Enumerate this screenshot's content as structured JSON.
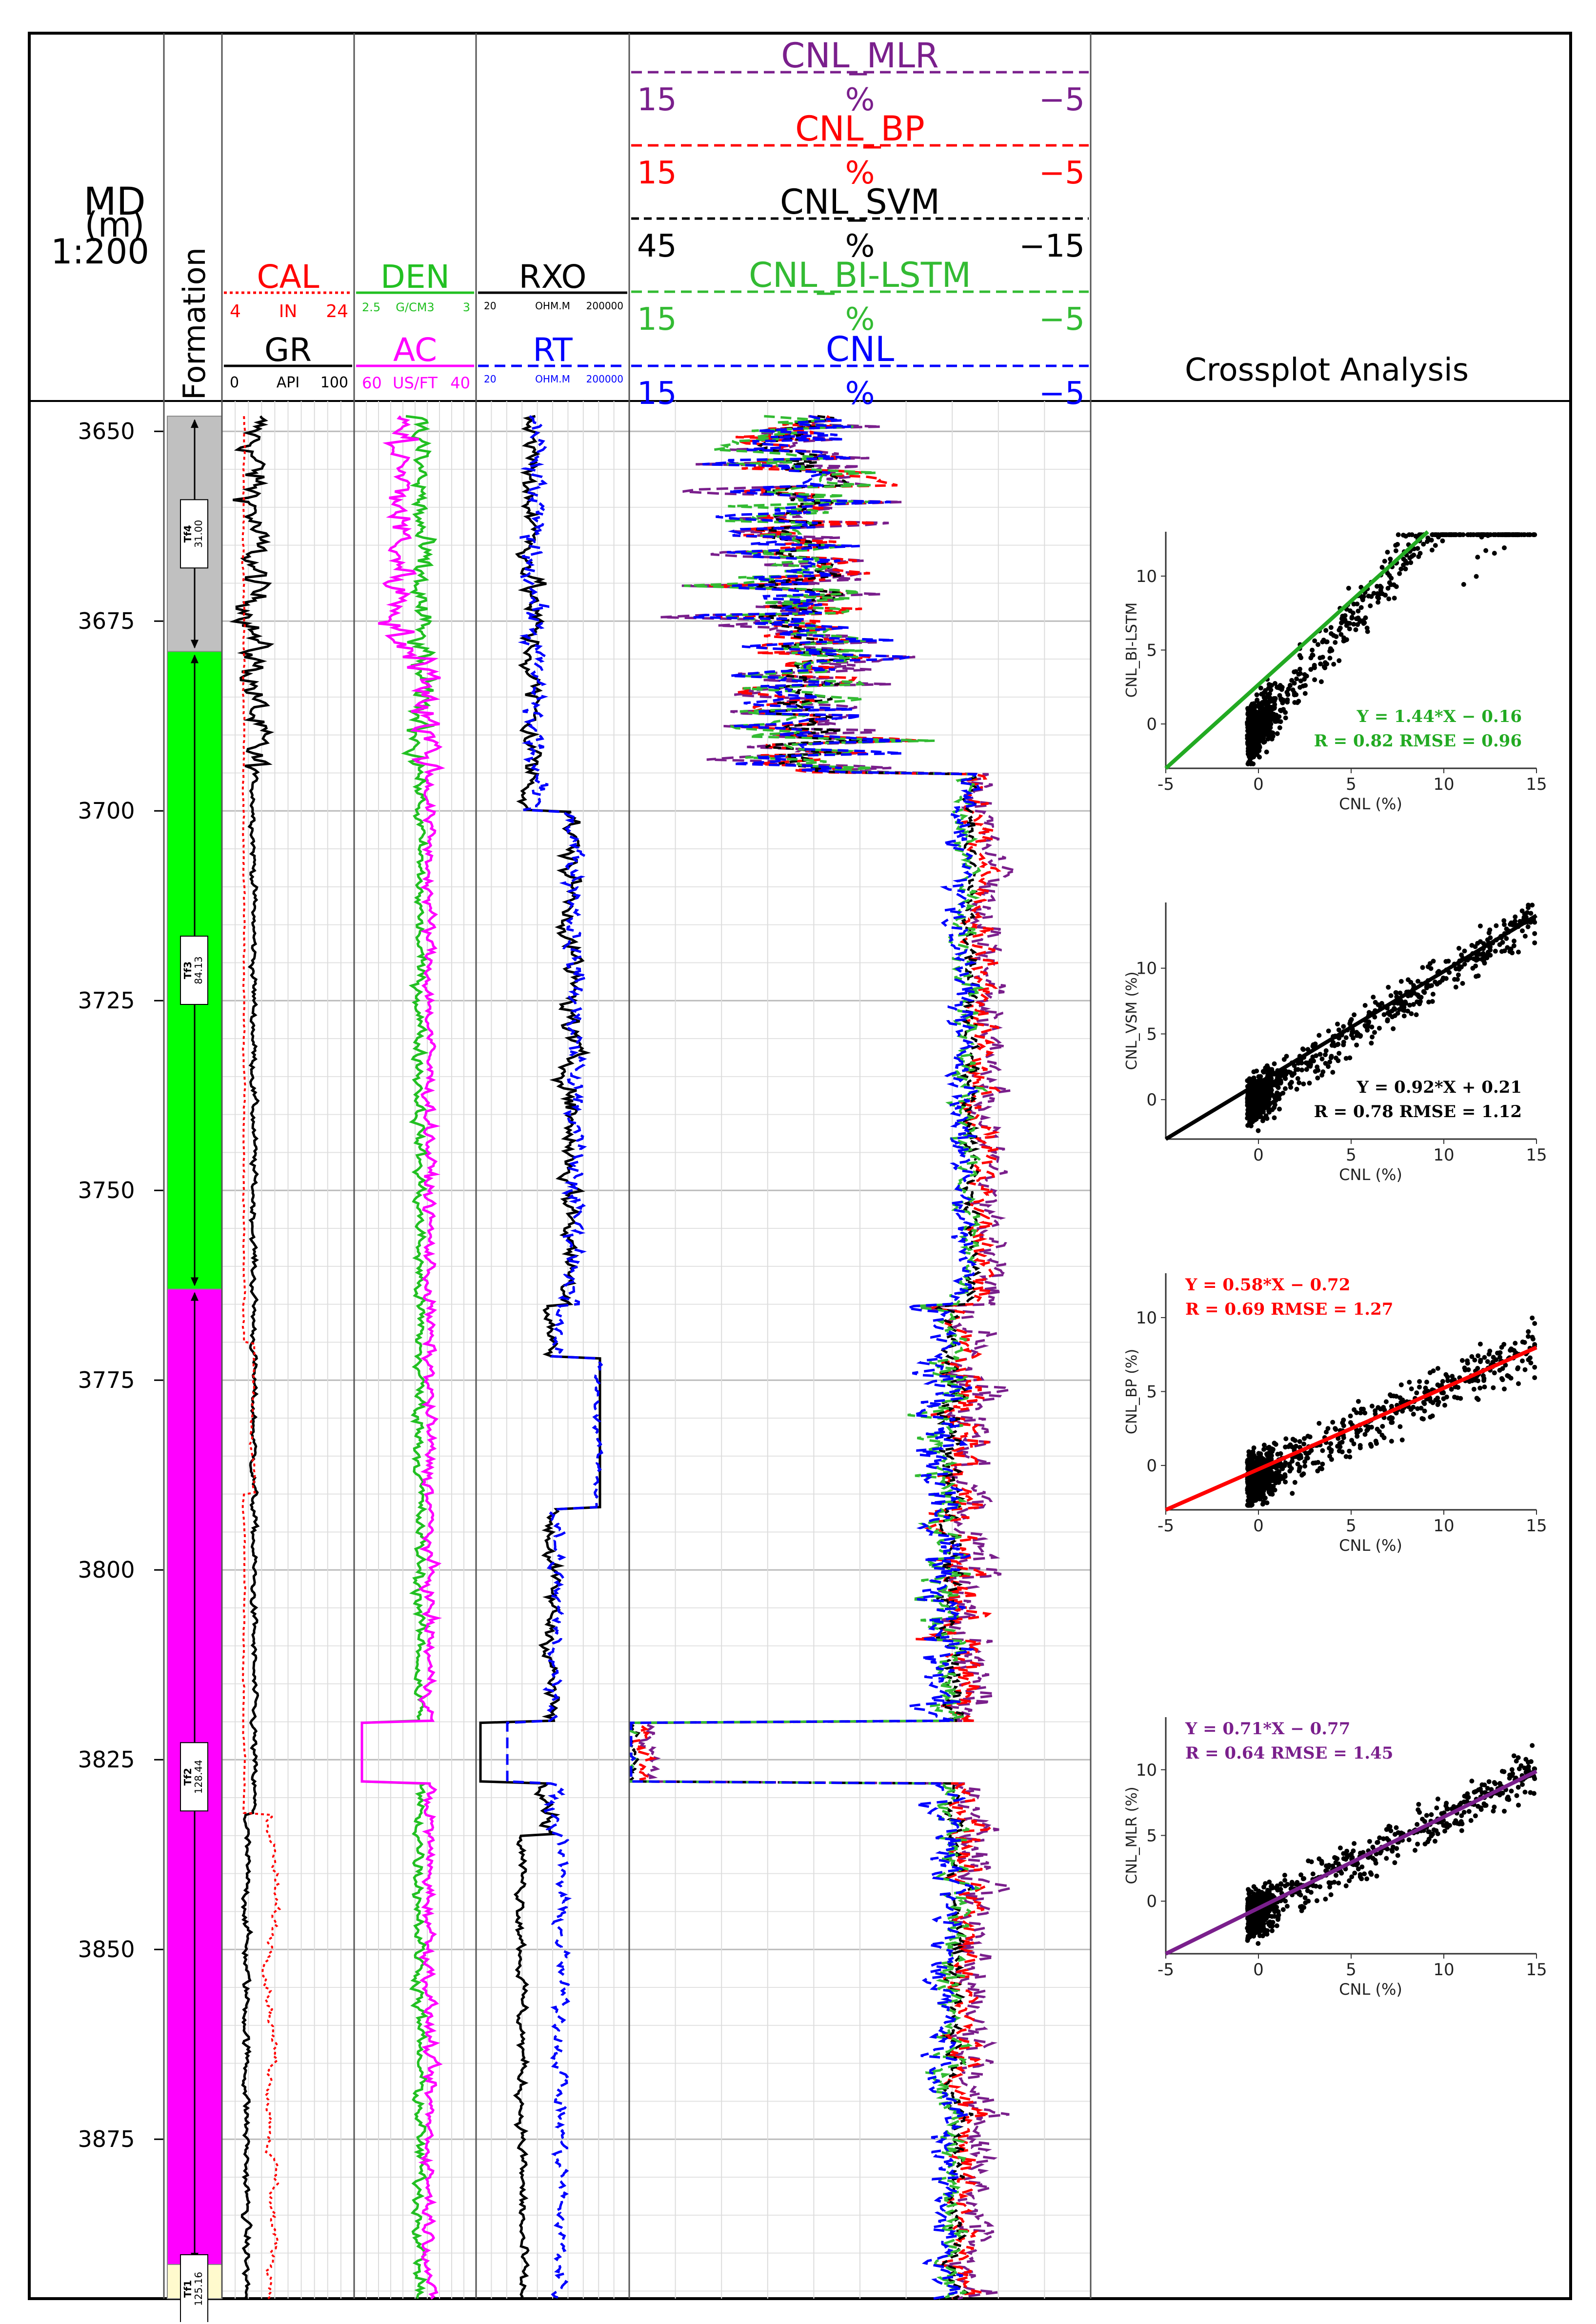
{
  "header": {
    "depth": {
      "line1": "MD",
      "line2": "(m)",
      "line3": "1:200"
    },
    "formation_label": "Formation",
    "crossplot_title": "Crossplot Analysis"
  },
  "tracks": {
    "gr_track": {
      "curves": [
        {
          "name": "CAL",
          "unit": "IN",
          "left": "4",
          "right": "24",
          "color": "#ff0000",
          "dash": "dotted"
        },
        {
          "name": "GR",
          "unit": "API",
          "left": "0",
          "right": "100",
          "color": "#000000",
          "dash": "solid"
        }
      ]
    },
    "den_track": {
      "curves": [
        {
          "name": "DEN",
          "unit": "G/CM3",
          "left": "2.5",
          "right": "3",
          "color": "#22c022",
          "dash": "solid"
        },
        {
          "name": "AC",
          "unit": "US/FT",
          "left": "60",
          "right": "40",
          "color": "#ff00ff",
          "dash": "solid"
        }
      ]
    },
    "res_track": {
      "curves": [
        {
          "name": "RXO",
          "unit": "OHM.M",
          "left": "20",
          "right": "200000",
          "color": "#000000",
          "dash": "solid"
        },
        {
          "name": "RT",
          "unit": "OHM.M",
          "left": "20",
          "right": "200000",
          "color": "#0000ff",
          "dash": "dashed"
        }
      ]
    },
    "cnl_track": {
      "curves": [
        {
          "name": "CNL_MLR",
          "unit": "%",
          "left": "15",
          "right": "−5",
          "color": "#7a1f8c"
        },
        {
          "name": "CNL_BP",
          "unit": "%",
          "left": "15",
          "right": "−5",
          "color": "#ff0000"
        },
        {
          "name": "CNL_SVM",
          "unit": "%",
          "left": "45",
          "right": "−15",
          "color": "#000000"
        },
        {
          "name": "CNL_BI-LSTM",
          "unit": "%",
          "left": "15",
          "right": "−5",
          "color": "#33bb33"
        },
        {
          "name": "CNL",
          "unit": "%",
          "left": "15",
          "right": "−5",
          "color": "#0000ff"
        }
      ]
    }
  },
  "depth_axis": {
    "top": 3646,
    "bottom": 3896,
    "ticks": [
      "3650",
      "3675",
      "3700",
      "3725",
      "3750",
      "3775",
      "3800",
      "3825",
      "3850",
      "3875"
    ]
  },
  "formations": [
    {
      "name": "Tf4",
      "thickness": "31.00",
      "top": 3648,
      "bottom": 3679,
      "color": "#c0c0c0"
    },
    {
      "name": "Tf3",
      "thickness": "84.13",
      "top": 3679,
      "bottom": 3763,
      "color": "#00ff00"
    },
    {
      "name": "Tf2",
      "thickness": "128.44",
      "top": 3763,
      "bottom": 3891.5,
      "color": "#ff00ff"
    },
    {
      "name": "Tf1",
      "thickness": "125.16",
      "top": 3891.5,
      "bottom": 3896,
      "color": "#fffacd"
    }
  ],
  "chart_data": [
    {
      "type": "scatter",
      "ylabel": "CNL_BI-LSTM",
      "xlabel": "CNL (%)",
      "xlim": [
        -5,
        15
      ],
      "ylim": [
        -3,
        13
      ],
      "xticks": [
        "-5",
        "0",
        "5",
        "10",
        "15"
      ],
      "yticks": [
        "0",
        "5",
        "10"
      ],
      "fit": {
        "slope": 1.44,
        "intercept": -0.16,
        "color": "#22aa22"
      },
      "equation": "Y = 1.44*X − 0.16",
      "stats": "R = 0.82 RMSE = 0.96",
      "text_color": "#22aa22",
      "text_position": "bottom-right"
    },
    {
      "type": "scatter",
      "ylabel": "CNL_VSM (%)",
      "xlabel": "CNL (%)",
      "xlim": [
        -5,
        15
      ],
      "ylim": [
        -3,
        15
      ],
      "xticks": [
        "0",
        "5",
        "10",
        "15"
      ],
      "yticks": [
        "0",
        "5",
        "10"
      ],
      "fit": {
        "slope": 0.92,
        "intercept": 0.21,
        "color": "#000000"
      },
      "equation": "Y = 0.92*X + 0.21",
      "stats": "R = 0.78 RMSE = 1.12",
      "text_color": "#000000",
      "text_position": "bottom-right"
    },
    {
      "type": "scatter",
      "ylabel": "CNL_BP (%)",
      "xlabel": "CNL (%)",
      "xlim": [
        -5,
        15
      ],
      "ylim": [
        -3,
        13
      ],
      "xticks": [
        "-5",
        "0",
        "5",
        "10",
        "15"
      ],
      "yticks": [
        "0",
        "5",
        "10"
      ],
      "fit": {
        "slope": 0.58,
        "intercept": -0.72,
        "color": "#ff0000"
      },
      "equation": "Y = 0.58*X − 0.72",
      "stats": "R = 0.69 RMSE = 1.27",
      "text_color": "#ff0000",
      "text_position": "top-left"
    },
    {
      "type": "scatter",
      "ylabel": "CNL_MLR (%)",
      "xlabel": "CNL (%)",
      "xlim": [
        -5,
        15
      ],
      "ylim": [
        -4,
        14
      ],
      "xticks": [
        "-5",
        "0",
        "5",
        "10",
        "15"
      ],
      "yticks": [
        "0",
        "5",
        "10"
      ],
      "fit": {
        "slope": 0.71,
        "intercept": -0.77,
        "color": "#7a1f8c"
      },
      "equation": "Y = 0.71*X − 0.77",
      "stats": "R = 0.64    RMSE = 1.45",
      "text_color": "#7a1f8c",
      "text_position": "top-left"
    }
  ]
}
